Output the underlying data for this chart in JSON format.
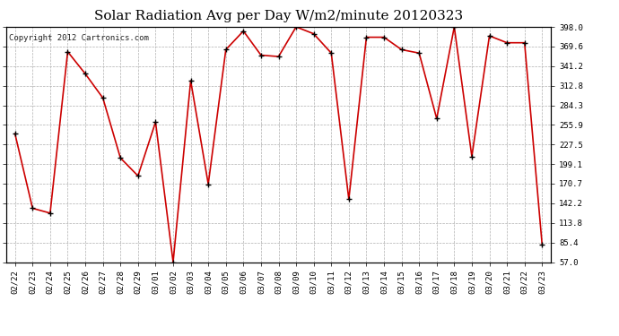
{
  "title": "Solar Radiation Avg per Day W/m2/minute 20120323",
  "copyright": "Copyright 2012 Cartronics.com",
  "dates": [
    "02/22",
    "02/23",
    "02/24",
    "02/25",
    "02/26",
    "02/27",
    "02/28",
    "02/29",
    "03/01",
    "03/02",
    "03/03",
    "03/04",
    "03/05",
    "03/06",
    "03/07",
    "03/08",
    "03/09",
    "03/10",
    "03/11",
    "03/12",
    "03/13",
    "03/14",
    "03/15",
    "03/16",
    "03/17",
    "03/18",
    "03/19",
    "03/20",
    "03/21",
    "03/22",
    "03/23"
  ],
  "values": [
    243,
    135,
    128,
    362,
    330,
    295,
    208,
    182,
    260,
    57,
    320,
    170,
    365,
    392,
    357,
    355,
    398,
    388,
    360,
    148,
    383,
    383,
    365,
    360,
    265,
    398,
    210,
    385,
    375,
    375,
    82
  ],
  "line_color": "#cc0000",
  "marker_color": "#000000",
  "background_color": "#ffffff",
  "plot_bg_color": "#ffffff",
  "grid_color": "#b0b0b0",
  "ylim": [
    57.0,
    398.0
  ],
  "yticks": [
    57.0,
    85.4,
    113.8,
    142.2,
    170.7,
    199.1,
    227.5,
    255.9,
    284.3,
    312.8,
    341.2,
    369.6,
    398.0
  ],
  "title_fontsize": 11,
  "copyright_fontsize": 6.5,
  "tick_fontsize": 6.5
}
